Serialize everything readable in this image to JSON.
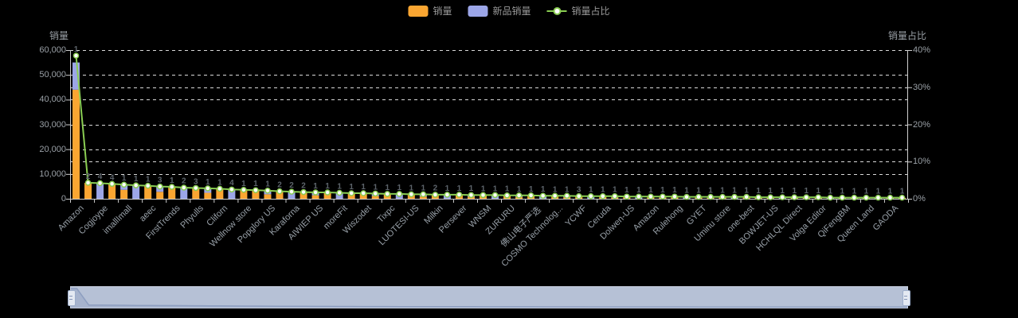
{
  "legend": {
    "items": [
      {
        "label": "销量",
        "type": "bar",
        "color": "#FAA632"
      },
      {
        "label": "新品销量",
        "type": "bar",
        "color": "#9CA6E8"
      },
      {
        "label": "销量占比",
        "type": "line",
        "color": "#8ACD52"
      }
    ]
  },
  "axes": {
    "left": {
      "name": "销量",
      "ticks": [
        "0",
        "10,000",
        "20,000",
        "30,000",
        "40,000",
        "50,000",
        "60,000"
      ],
      "max": 60000
    },
    "right": {
      "name": "销量占比",
      "ticks": [
        "0%",
        "10%",
        "20%",
        "30%",
        "40%"
      ],
      "max": 40
    }
  },
  "chart_data": {
    "type": "bar",
    "title": "",
    "xlabel": "",
    "ylabel_left": "销量",
    "ylabel_right": "销量占比",
    "ylim_left": [
      0,
      60000
    ],
    "ylim_right_percent": [
      0,
      40
    ],
    "grid": "dashed",
    "legend_position": "top-center",
    "categories": [
      "Amazon",
      "",
      "Cogjoype",
      "",
      "imallImall",
      "",
      "aeec",
      "",
      "FirstTrends",
      "",
      "Phyulls",
      "",
      "Cliforn",
      "",
      "Wellnow store",
      "",
      "Popglory US",
      "",
      "Karaforna",
      "",
      "AIWIEP US",
      "",
      "moreFit",
      "",
      "Wiszodet",
      "",
      "Tixpc",
      "",
      "LUOTESI-US",
      "",
      "Milkin",
      "",
      "Persever",
      "",
      "WNSM",
      "",
      "ZURURU",
      "",
      "佛山电子严选",
      "",
      "COSMO Technolog...",
      "",
      "YCWF",
      "",
      "Ceruda",
      "",
      "Dolwen-US",
      "",
      "Amazon",
      "",
      "Rulehong",
      "",
      "GYET",
      "",
      "Uminu store",
      "",
      "one-best",
      "",
      "BOWJET-US",
      "",
      "HCHLQL Direct",
      "",
      "Volga Editor",
      "",
      "QiFengBM",
      "",
      "Queen Land",
      "",
      "GAODA",
      ""
    ],
    "series": [
      {
        "name": "销量",
        "type": "bar",
        "stack": "total",
        "color": "#FAA632",
        "values": [
          44000,
          6400,
          0,
          6000,
          3600,
          0,
          5200,
          2800,
          4800,
          0,
          4400,
          2400,
          4000,
          0,
          3600,
          3400,
          1800,
          3000,
          0,
          2700,
          1400,
          2500,
          0,
          2300,
          2200,
          1100,
          2000,
          0,
          1800,
          900,
          1700,
          0,
          1600,
          800,
          1500,
          0,
          1400,
          700,
          1300,
          0,
          1200,
          600,
          1100,
          0,
          1000,
          500,
          950,
          0,
          900,
          450,
          850,
          0,
          800,
          400,
          750,
          0,
          700,
          350,
          650,
          0,
          600,
          300,
          550,
          0,
          500,
          250,
          450,
          0,
          400,
          380
        ]
      },
      {
        "name": "新品销量",
        "type": "bar",
        "stack": "total",
        "color": "#9CA6E8",
        "values": [
          11000,
          0,
          6400,
          0,
          2200,
          5400,
          0,
          2200,
          0,
          4600,
          0,
          1800,
          0,
          3800,
          0,
          0,
          1400,
          0,
          2800,
          0,
          1200,
          0,
          2400,
          0,
          0,
          1000,
          0,
          1900,
          0,
          850,
          0,
          1650,
          0,
          750,
          0,
          1450,
          0,
          650,
          0,
          1250,
          0,
          550,
          0,
          1050,
          0,
          480,
          0,
          920,
          0,
          430,
          0,
          820,
          0,
          380,
          0,
          720,
          0,
          330,
          0,
          620,
          0,
          280,
          0,
          520,
          0,
          230,
          0,
          420,
          0,
          0
        ]
      },
      {
        "name": "销量占比",
        "type": "line",
        "axis": "right",
        "unit": "%",
        "color": "#8ACD52",
        "values": [
          38.5,
          4.3,
          4.2,
          4.0,
          3.8,
          3.6,
          3.5,
          3.3,
          3.2,
          3.0,
          2.9,
          2.8,
          2.7,
          2.5,
          2.4,
          2.3,
          2.2,
          2.0,
          1.9,
          1.8,
          1.7,
          1.7,
          1.6,
          1.5,
          1.5,
          1.4,
          1.3,
          1.3,
          1.2,
          1.2,
          1.1,
          1.1,
          1.1,
          1.0,
          1.0,
          1.0,
          0.9,
          0.9,
          0.9,
          0.8,
          0.8,
          0.8,
          0.7,
          0.7,
          0.7,
          0.7,
          0.6,
          0.6,
          0.6,
          0.6,
          0.6,
          0.5,
          0.5,
          0.5,
          0.5,
          0.5,
          0.5,
          0.4,
          0.4,
          0.4,
          0.4,
          0.4,
          0.4,
          0.3,
          0.3,
          0.3,
          0.3,
          0.3,
          0.3,
          0.3
        ]
      }
    ],
    "bar_labels": [
      1,
      2,
      4,
      4,
      1,
      1,
      1,
      3,
      1,
      2,
      3,
      1,
      1,
      4,
      1,
      1,
      1,
      2,
      2,
      2,
      1,
      1,
      1,
      1,
      1,
      1,
      1,
      1,
      1,
      1,
      2,
      1,
      1,
      1,
      1,
      1,
      1,
      1,
      1,
      1,
      1,
      1,
      3,
      1,
      1,
      1,
      1,
      1,
      1,
      1,
      1,
      1,
      1,
      1,
      1,
      1,
      1,
      1,
      1,
      1,
      1,
      1,
      1,
      1,
      1,
      1,
      1,
      1,
      1,
      1
    ]
  },
  "colors": {
    "background": "#000000",
    "bar_sales": "#FAA632",
    "bar_new": "#9CA6E8",
    "line_ratio": "#8ACD52",
    "marker_fill": "#FFFFFF",
    "grid": "#D9D9D9",
    "axis_line": "#CFCFCF",
    "axis_text": "#9AA0A6",
    "bar_label_text": "#5D646B",
    "slider_track": "#B6C1D6",
    "slider_area": "#A6B3CD",
    "slider_line": "#8D9EC0",
    "slider_handle": "#E4E9F2"
  }
}
